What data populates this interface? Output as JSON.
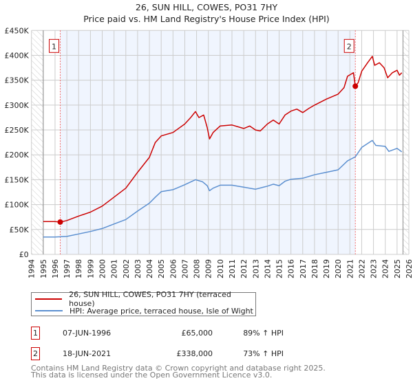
{
  "chart_data": {
    "type": "line",
    "title": "26, SUN HILL, COWES, PO31 7HY",
    "subtitle": "Price paid vs. HM Land Registry's House Price Index (HPI)",
    "xlim": [
      1994,
      2026
    ],
    "ylim": [
      0,
      450000
    ],
    "grid": true,
    "x_ticks": [
      "1994",
      "1995",
      "1996",
      "1997",
      "1998",
      "1999",
      "2000",
      "2001",
      "2002",
      "2003",
      "2004",
      "2005",
      "2006",
      "2007",
      "2008",
      "2009",
      "2010",
      "2011",
      "2012",
      "2013",
      "2014",
      "2015",
      "2016",
      "2017",
      "2018",
      "2019",
      "2020",
      "2021",
      "2022",
      "2023",
      "2024",
      "2025",
      "2026"
    ],
    "y_ticks": [
      {
        "value": 0,
        "label": "£0"
      },
      {
        "value": 50000,
        "label": "£50K"
      },
      {
        "value": 100000,
        "label": "£100K"
      },
      {
        "value": 150000,
        "label": "£150K"
      },
      {
        "value": 200000,
        "label": "£200K"
      },
      {
        "value": 250000,
        "label": "£250K"
      },
      {
        "value": 300000,
        "label": "£300K"
      },
      {
        "value": 350000,
        "label": "£350K"
      },
      {
        "value": 400000,
        "label": "£400K"
      },
      {
        "value": 450000,
        "label": "£450K"
      }
    ],
    "data_start": 1995,
    "data_end": 2025.5,
    "shaded_range": [
      1996.44,
      2021.46
    ],
    "series": [
      {
        "name": "26, SUN HILL, COWES, PO31 7HY (terraced house)",
        "color": "#cc0000",
        "x": [
          1995,
          1996,
          1996.44,
          1997,
          1998,
          1999,
          2000,
          2001,
          2002,
          2003,
          2004,
          2004.5,
          2005,
          2006,
          2007,
          2007.5,
          2007.9,
          2008.2,
          2008.6,
          2008.9,
          2009.1,
          2009.4,
          2010,
          2011,
          2012,
          2012.5,
          2013,
          2013.4,
          2014,
          2014.5,
          2015,
          2015.5,
          2016,
          2016.5,
          2017,
          2017.5,
          2018,
          2019,
          2020,
          2020.5,
          2020.8,
          2021.3,
          2021.46,
          2021.7,
          2022,
          2022.5,
          2022.9,
          2023.1,
          2023.5,
          2023.9,
          2024.2,
          2024.6,
          2025,
          2025.2,
          2025.4
        ],
        "y": [
          66000,
          66000,
          65000,
          68000,
          77000,
          85000,
          97000,
          115000,
          133000,
          165000,
          195000,
          225000,
          238000,
          245000,
          262000,
          275000,
          287000,
          275000,
          280000,
          255000,
          232000,
          245000,
          258000,
          260000,
          253000,
          258000,
          250000,
          248000,
          262000,
          270000,
          262000,
          280000,
          288000,
          292000,
          285000,
          293000,
          300000,
          312000,
          322000,
          335000,
          358000,
          365000,
          338000,
          345000,
          368000,
          385000,
          398000,
          380000,
          385000,
          375000,
          355000,
          365000,
          370000,
          360000,
          365000
        ]
      },
      {
        "name": "HPI: Average price, terraced house, Isle of Wight",
        "color": "#5b8fd0",
        "x": [
          1995,
          1996,
          1997,
          1998,
          1999,
          2000,
          2001,
          2002,
          2003,
          2004,
          2004.5,
          2005,
          2006,
          2007,
          2007.9,
          2008.5,
          2008.9,
          2009.1,
          2009.4,
          2010,
          2011,
          2012,
          2013,
          2014,
          2014.5,
          2015,
          2015.5,
          2016,
          2017,
          2018,
          2019,
          2020,
          2020.8,
          2021.46,
          2022,
          2022.9,
          2023.2,
          2024,
          2024.3,
          2025,
          2025.4
        ],
        "y": [
          35000,
          35000,
          36000,
          41000,
          46000,
          52000,
          61000,
          70000,
          87000,
          103000,
          115000,
          126000,
          130000,
          140000,
          150000,
          146000,
          138000,
          128000,
          133000,
          139000,
          139000,
          135000,
          131000,
          137000,
          141000,
          138000,
          147000,
          151000,
          153000,
          160000,
          165000,
          170000,
          188000,
          196000,
          215000,
          229000,
          219000,
          217000,
          207000,
          213000,
          206000
        ]
      }
    ],
    "sales": [
      {
        "id": "1",
        "x": 1996.44,
        "y": 65000,
        "date": "07-JUN-1996",
        "price": "£65,000",
        "hpi": "89% ↑ HPI"
      },
      {
        "id": "2",
        "x": 2021.46,
        "y": 338000,
        "date": "18-JUN-2021",
        "price": "£338,000",
        "hpi": "73% ↑ HPI"
      }
    ]
  },
  "footer": {
    "line1": "Contains HM Land Registry data © Crown copyright and database right 2025.",
    "line2": "This data is licensed under the Open Government Licence v3.0."
  }
}
